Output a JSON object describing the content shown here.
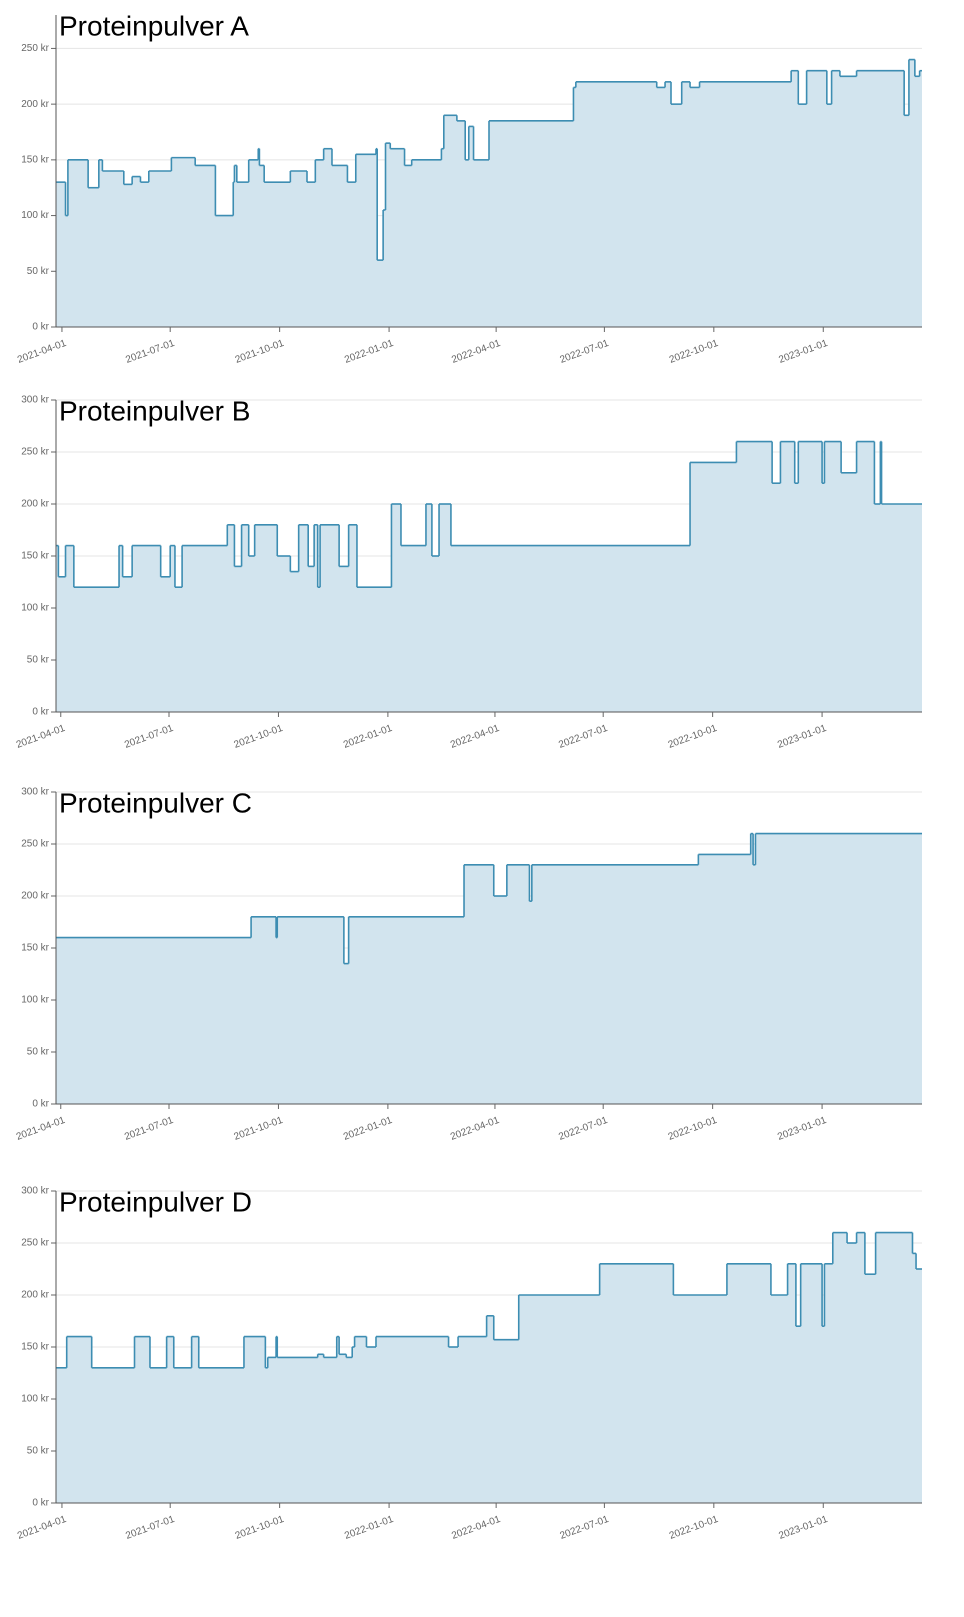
{
  "chart_data": [
    {
      "type": "area",
      "step": true,
      "title": "Proteinpulver A",
      "color": "#3d8db2",
      "area_color": "#d2e4ee",
      "grid": true,
      "x": [
        "2021-03-27",
        "2021-04-04",
        "2021-04-06",
        "2021-04-23",
        "2021-05-02",
        "2021-05-05",
        "2021-05-23",
        "2021-05-30",
        "2021-06-06",
        "2021-06-13",
        "2021-07-02",
        "2021-07-22",
        "2021-08-08",
        "2021-08-23",
        "2021-08-24",
        "2021-08-26",
        "2021-09-05",
        "2021-09-13",
        "2021-09-14",
        "2021-09-18",
        "2021-10-10",
        "2021-10-24",
        "2021-10-31",
        "2021-11-07",
        "2021-11-14",
        "2021-11-27",
        "2021-12-04",
        "2021-12-21",
        "2021-12-22",
        "2021-12-27",
        "2021-12-29",
        "2022-01-02",
        "2022-01-14",
        "2022-01-20",
        "2022-02-14",
        "2022-02-16",
        "2022-02-27",
        "2022-03-06",
        "2022-03-09",
        "2022-03-13",
        "2022-03-26",
        "2022-06-05",
        "2022-06-07",
        "2022-08-14",
        "2022-08-21",
        "2022-08-26",
        "2022-09-04",
        "2022-09-11",
        "2022-09-19",
        "2022-12-05",
        "2022-12-11",
        "2022-12-18",
        "2023-01-04",
        "2023-01-08",
        "2023-01-15",
        "2023-01-29",
        "2023-03-10",
        "2023-03-14",
        "2023-03-19",
        "2023-03-23",
        "2023-03-25"
      ],
      "values": [
        130,
        100,
        150,
        125,
        150,
        140,
        128,
        135,
        130,
        140,
        152,
        145,
        100,
        130,
        145,
        130,
        150,
        160,
        145,
        130,
        140,
        130,
        150,
        160,
        145,
        130,
        155,
        160,
        60,
        105,
        165,
        160,
        145,
        150,
        160,
        190,
        185,
        150,
        180,
        150,
        185,
        215,
        220,
        215,
        220,
        200,
        220,
        215,
        220,
        230,
        200,
        230,
        200,
        230,
        225,
        230,
        190,
        240,
        225,
        230,
        230
      ],
      "xlim": [
        "2021-03-27",
        "2023-03-25"
      ],
      "xticks": [
        "2021-04-01",
        "2021-07-01",
        "2021-10-01",
        "2022-01-01",
        "2022-04-01",
        "2022-07-01",
        "2022-10-01",
        "2023-01-01"
      ],
      "ylim": [
        0,
        280
      ],
      "yticks": [
        {
          "value": 0,
          "label": "0 kr"
        },
        {
          "value": 50,
          "label": "50 kr"
        },
        {
          "value": 100,
          "label": "100 kr"
        },
        {
          "value": 150,
          "label": "150 kr"
        },
        {
          "value": 200,
          "label": "200 kr"
        },
        {
          "value": 250,
          "label": "250 kr"
        }
      ]
    },
    {
      "type": "area",
      "step": true,
      "title": "Proteinpulver B",
      "color": "#3d8db2",
      "area_color": "#d2e4ee",
      "grid": true,
      "x": [
        "2021-03-28",
        "2021-03-30",
        "2021-04-05",
        "2021-04-12",
        "2021-05-20",
        "2021-05-23",
        "2021-05-31",
        "2021-06-24",
        "2021-07-02",
        "2021-07-06",
        "2021-07-12",
        "2021-08-19",
        "2021-08-25",
        "2021-08-31",
        "2021-09-06",
        "2021-09-11",
        "2021-09-30",
        "2021-10-11",
        "2021-10-18",
        "2021-10-26",
        "2021-10-31",
        "2021-11-03",
        "2021-11-05",
        "2021-11-21",
        "2021-11-29",
        "2021-12-06",
        "2022-01-04",
        "2022-01-12",
        "2022-02-02",
        "2022-02-07",
        "2022-02-13",
        "2022-02-23",
        "2022-09-12",
        "2022-10-21",
        "2022-11-20",
        "2022-11-27",
        "2022-12-09",
        "2022-12-12",
        "2023-01-01",
        "2023-01-03",
        "2023-01-17",
        "2023-01-30",
        "2023-02-14",
        "2023-02-19",
        "2023-02-20",
        "2023-03-26"
      ],
      "values": [
        160,
        130,
        160,
        120,
        160,
        130,
        160,
        130,
        160,
        120,
        160,
        180,
        140,
        180,
        150,
        180,
        150,
        135,
        180,
        140,
        180,
        120,
        180,
        140,
        180,
        120,
        200,
        160,
        200,
        150,
        200,
        160,
        240,
        260,
        220,
        260,
        220,
        260,
        220,
        260,
        230,
        260,
        200,
        260,
        200,
        200
      ],
      "xlim": [
        "2021-03-28",
        "2023-03-26"
      ],
      "xticks": [
        "2021-04-01",
        "2021-07-01",
        "2021-10-01",
        "2022-01-01",
        "2022-04-01",
        "2022-07-01",
        "2022-10-01",
        "2023-01-01"
      ],
      "ylim": [
        0,
        300
      ],
      "yticks": [
        {
          "value": 0,
          "label": "0 kr"
        },
        {
          "value": 50,
          "label": "50 kr"
        },
        {
          "value": 100,
          "label": "100 kr"
        },
        {
          "value": 150,
          "label": "150 kr"
        },
        {
          "value": 200,
          "label": "200 kr"
        },
        {
          "value": 250,
          "label": "250 kr"
        },
        {
          "value": 300,
          "label": "300 kr"
        }
      ]
    },
    {
      "type": "area",
      "step": true,
      "title": "Proteinpulver C",
      "color": "#3d8db2",
      "area_color": "#d2e4ee",
      "grid": true,
      "x": [
        "2021-03-28",
        "2021-09-08",
        "2021-09-29",
        "2021-09-30",
        "2021-11-25",
        "2021-11-29",
        "2022-03-06",
        "2022-03-31",
        "2022-04-11",
        "2022-04-30",
        "2022-05-02",
        "2022-09-19",
        "2022-11-02",
        "2022-11-04",
        "2022-11-06",
        "2023-03-26"
      ],
      "values": [
        160,
        180,
        160,
        180,
        135,
        180,
        230,
        200,
        230,
        195,
        230,
        240,
        260,
        230,
        260,
        260
      ],
      "xlim": [
        "2021-03-28",
        "2023-03-26"
      ],
      "xticks": [
        "2021-04-01",
        "2021-07-01",
        "2021-10-01",
        "2022-01-01",
        "2022-04-01",
        "2022-07-01",
        "2022-10-01",
        "2023-01-01"
      ],
      "ylim": [
        0,
        300
      ],
      "yticks": [
        {
          "value": 0,
          "label": "0 kr"
        },
        {
          "value": 50,
          "label": "50 kr"
        },
        {
          "value": 100,
          "label": "100 kr"
        },
        {
          "value": 150,
          "label": "150 kr"
        },
        {
          "value": 200,
          "label": "200 kr"
        },
        {
          "value": 250,
          "label": "250 kr"
        },
        {
          "value": 300,
          "label": "300 kr"
        }
      ]
    },
    {
      "type": "area",
      "step": true,
      "title": "Proteinpulver D",
      "color": "#3d8db2",
      "area_color": "#d2e4ee",
      "grid": true,
      "x": [
        "2021-03-27",
        "2021-04-05",
        "2021-04-26",
        "2021-06-01",
        "2021-06-14",
        "2021-06-28",
        "2021-07-04",
        "2021-07-19",
        "2021-07-25",
        "2021-09-01",
        "2021-09-19",
        "2021-09-21",
        "2021-09-28",
        "2021-09-29",
        "2021-11-02",
        "2021-11-07",
        "2021-11-18",
        "2021-11-20",
        "2021-11-26",
        "2021-12-01",
        "2021-12-03",
        "2021-12-13",
        "2021-12-21",
        "2022-02-20",
        "2022-02-28",
        "2022-03-24",
        "2022-03-30",
        "2022-04-20",
        "2022-06-27",
        "2022-08-28",
        "2022-10-12",
        "2022-11-18",
        "2022-12-02",
        "2022-12-09",
        "2022-12-13",
        "2022-12-31",
        "2023-01-02",
        "2023-01-09",
        "2023-01-21",
        "2023-01-29",
        "2023-02-05",
        "2023-02-14",
        "2023-03-17",
        "2023-03-20",
        "2023-03-25"
      ],
      "values": [
        130,
        160,
        130,
        160,
        130,
        160,
        130,
        160,
        130,
        160,
        130,
        140,
        160,
        140,
        143,
        140,
        160,
        143,
        140,
        150,
        160,
        150,
        160,
        150,
        160,
        180,
        157,
        200,
        230,
        200,
        230,
        200,
        230,
        170,
        230,
        170,
        230,
        260,
        250,
        260,
        220,
        260,
        240,
        225,
        225
      ],
      "xlim": [
        "2021-03-27",
        "2023-03-25"
      ],
      "xticks": [
        "2021-04-01",
        "2021-07-01",
        "2021-10-01",
        "2022-01-01",
        "2022-04-01",
        "2022-07-01",
        "2022-10-01",
        "2023-01-01"
      ],
      "ylim": [
        0,
        300
      ],
      "yticks": [
        {
          "value": 0,
          "label": "0 kr"
        },
        {
          "value": 50,
          "label": "50 kr"
        },
        {
          "value": 100,
          "label": "100 kr"
        },
        {
          "value": 150,
          "label": "150 kr"
        },
        {
          "value": 200,
          "label": "200 kr"
        },
        {
          "value": 250,
          "label": "250 kr"
        },
        {
          "value": 300,
          "label": "300 kr"
        }
      ]
    }
  ]
}
